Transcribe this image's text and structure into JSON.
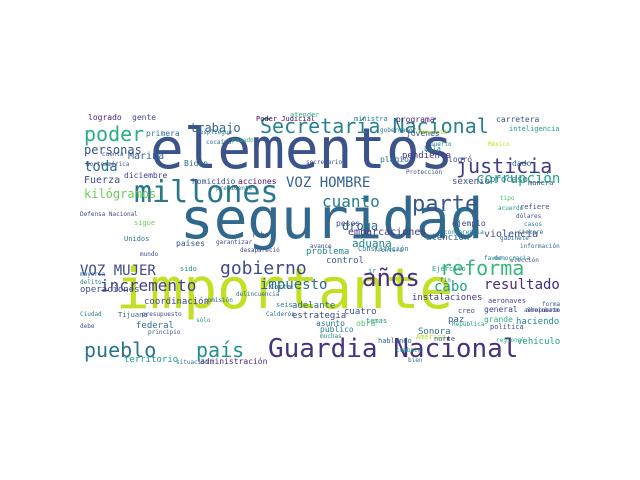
{
  "words": [
    {
      "t": "seguridad",
      "c": "#31688e"
    },
    {
      "t": "importante",
      "c": "#c2df23"
    },
    {
      "t": "elementos",
      "c": "#3b528b"
    },
    {
      "t": "Guardia Nacional",
      "c": "#46327e"
    },
    {
      "t": "millones",
      "c": "#2a788e"
    },
    {
      "t": "Secretaría Nacional",
      "c": "#26828e"
    },
    {
      "t": "años",
      "c": "#472d7b"
    },
    {
      "t": "pueblo",
      "c": "#2c728e"
    },
    {
      "t": "país",
      "c": "#21918c"
    },
    {
      "t": "gobierno",
      "c": "#3e4989"
    },
    {
      "t": "reforma",
      "c": "#35b779"
    },
    {
      "t": "justicia",
      "c": "#443a83"
    },
    {
      "t": "poder",
      "c": "#2ab07f"
    },
    {
      "t": "VOZ HOMBRE",
      "c": "#33638d"
    },
    {
      "t": "VOZ MUJER",
      "c": "#3e4a89"
    },
    {
      "t": "incremento",
      "c": "#414487"
    },
    {
      "t": "corrupción",
      "c": "#20a486"
    },
    {
      "t": "parte",
      "c": "#38588c"
    },
    {
      "t": "cuanto",
      "c": "#287d8e"
    },
    {
      "t": "trabajo",
      "c": "#32658e"
    },
    {
      "t": "personas",
      "c": "#3a538b"
    },
    {
      "t": "toda",
      "c": "#2d708e"
    },
    {
      "t": "resultado",
      "c": "#472a7a"
    },
    {
      "t": "cabo",
      "c": "#1fa188"
    },
    {
      "t": "impuesto",
      "c": "#2f6b8e"
    },
    {
      "t": "droga",
      "c": "#30698e"
    },
    {
      "t": "aduana",
      "c": "#24868e"
    },
    {
      "t": "kilógramos",
      "c": "#6ccd5a"
    },
    {
      "t": "Fuerza",
      "c": "#3f4788"
    },
    {
      "t": "Marina",
      "c": "#355e8d"
    },
    {
      "t": "violencia",
      "c": "#3b518b"
    },
    {
      "t": "embarcaciones",
      "c": "#453781"
    },
    {
      "t": "pendiente",
      "c": "#46337e"
    },
    {
      "t": "sexenio",
      "c": "#3c4f8a"
    },
    {
      "t": "proceso",
      "c": "#2b758e"
    },
    {
      "t": "atención",
      "c": "#34618d"
    },
    {
      "t": "homicidio",
      "c": "#3d4d8a"
    },
    {
      "t": "acciones",
      "c": "#471063"
    },
    {
      "t": "diciembre",
      "c": "#433e85"
    },
    {
      "t": "Biden",
      "c": "#2e6d8e"
    },
    {
      "t": "Poder Judicial",
      "c": "#450559"
    },
    {
      "t": "logrado",
      "c": "#481f70"
    },
    {
      "t": "gente",
      "c": "#3d4e8a"
    },
    {
      "t": "primera",
      "c": "#2f6c8e"
    },
    {
      "t": "programa",
      "c": "#482173"
    },
    {
      "t": "carretera",
      "c": "#3c508b"
    },
    {
      "t": "ministra",
      "c": "#25848e"
    },
    {
      "t": "atender",
      "c": "#29af7f"
    },
    {
      "t": "inteligencia",
      "c": "#1f9e89"
    },
    {
      "t": "operaciones",
      "c": "#3e4c8a"
    },
    {
      "t": "coordinación",
      "c": "#404688"
    },
    {
      "t": "federal",
      "c": "#2e6f8e"
    },
    {
      "t": "territorio",
      "c": "#1e9b8a"
    },
    {
      "t": "administración",
      "c": "#482878"
    },
    {
      "t": "estrategia",
      "c": "#3f4889"
    },
    {
      "t": "adelante",
      "c": "#32648e"
    },
    {
      "t": "problema",
      "c": "#228c8d"
    },
    {
      "t": "control",
      "c": "#355f8d"
    },
    {
      "t": "cuatro",
      "c": "#3b528b"
    },
    {
      "t": "obra",
      "c": "#52c569"
    },
    {
      "t": "Sonora",
      "c": "#306a8e"
    },
    {
      "t": "paz",
      "c": "#365c8d"
    },
    {
      "t": "general",
      "c": "#3f4788"
    },
    {
      "t": "grande",
      "c": "#29af7f"
    },
    {
      "t": "haciendo",
      "c": "#24878e"
    },
    {
      "t": "vehículo",
      "c": "#20a386"
    },
    {
      "t": "política",
      "c": "#3d4e8a"
    },
    {
      "t": "instalaciones",
      "c": "#453882"
    },
    {
      "t": "América",
      "c": "#b5de2b"
    },
    {
      "t": "jóvenes",
      "c": "#3e4989"
    },
    {
      "t": "Lula",
      "c": "#23898e"
    },
    {
      "t": "plagio",
      "c": "#2c718e"
    },
    {
      "t": "logró",
      "c": "#3f4788"
    },
    {
      "t": "dado",
      "c": "#34618d"
    },
    {
      "t": "Ejército",
      "c": "#1fa187"
    },
    {
      "t": "Constitución",
      "c": "#287c8e"
    },
    {
      "t": "pesos",
      "c": "#414487"
    },
    {
      "t": "ir",
      "c": "#25838e"
    },
    {
      "t": "robo",
      "c": "#3a538b"
    },
    {
      "t": "sido",
      "c": "#21918c"
    },
    {
      "t": "países",
      "c": "#39568c"
    },
    {
      "t": "sigue",
      "c": "#6ece58"
    },
    {
      "t": "Unidos",
      "c": "#2a778e"
    },
    {
      "t": "mundo",
      "c": "#3e4a89"
    },
    {
      "t": "delito",
      "c": "#297b8e"
    },
    {
      "t": "mayoría",
      "c": "#31688e"
    },
    {
      "t": "Corte",
      "c": "#2d718e"
    },
    {
      "t": "seis",
      "c": "#27808e"
    },
    {
      "t": "público",
      "c": "#26828e"
    },
    {
      "t": "muchas",
      "c": "#238a8d"
    },
    {
      "t": "asunto",
      "c": "#2b748e"
    },
    {
      "t": "temas",
      "c": "#1f968b"
    },
    {
      "t": "hablando",
      "c": "#2f6b8e"
    },
    {
      "t": "norte",
      "c": "#365d8d"
    },
    {
      "t": "favor",
      "c": "#277e8e"
    },
    {
      "t": "creo",
      "c": "#3e4a89"
    },
    {
      "t": "manera",
      "c": "#3b528b"
    },
    {
      "t": "ejemplo",
      "c": "#3c4f8a"
    },
    {
      "t": "conferencia",
      "c": "#25858e"
    },
    {
      "t": "gabinete",
      "c": "#306a8e"
    },
    {
      "t": "refiere",
      "c": "#3b518b"
    },
    {
      "t": "México",
      "c": "#c8e020"
    },
    {
      "t": "puerto",
      "c": "#2a768e"
    },
    {
      "t": "fin",
      "c": "#2e6e8e"
    },
    {
      "t": "Sheinbaum",
      "c": "#3f4889"
    },
    {
      "t": "casos",
      "c": "#24878e"
    },
    {
      "t": "tipo",
      "c": "#4ac16d"
    },
    {
      "t": "Tijuana",
      "c": "#30698e"
    },
    {
      "t": "presupuesto",
      "c": "#3e4a89"
    },
    {
      "t": "principio",
      "c": "#39568c"
    },
    {
      "t": "Ciudad",
      "c": "#25848e"
    },
    {
      "t": "debe",
      "c": "#3b528b"
    },
    {
      "t": "sólo",
      "c": "#1f9f88"
    },
    {
      "t": "situación",
      "c": "#2a778e"
    },
    {
      "t": "comisión",
      "c": "#33638d"
    },
    {
      "t": "Defensa Nacional",
      "c": "#3e4989"
    },
    {
      "t": "delincuencia",
      "c": "#2e6e8e"
    },
    {
      "t": "Protección",
      "c": "#3a548c"
    },
    {
      "t": "acuerdo",
      "c": "#1f9a8a"
    },
    {
      "t": "aeronaves",
      "c": "#404688"
    },
    {
      "t": "regional",
      "c": "#35b779"
    },
    {
      "t": "aeropuerto",
      "c": "#3e4c8a"
    },
    {
      "t": "forma",
      "c": "#30698e"
    },
    {
      "t": "información",
      "c": "#2e6d8e"
    },
    {
      "t": "elección",
      "c": "#39568c"
    },
    {
      "t": "democracia",
      "c": "#25848e"
    },
    {
      "t": "gobernador",
      "c": "#2b758e"
    },
    {
      "t": "secretario",
      "c": "#3b528b"
    },
    {
      "t": "frontera",
      "c": "#2a788e"
    },
    {
      "t": "combate",
      "c": "#1f9a8a"
    },
    {
      "t": "avance",
      "c": "#3e4989"
    },
    {
      "t": "bien",
      "c": "#2c728e"
    },
    {
      "t": "siempre",
      "c": "#355f8d"
    },
    {
      "t": "dólares",
      "c": "#3a538b"
    },
    {
      "t": "tan",
      "c": "#238a8d"
    },
    {
      "t": "garantizar",
      "c": "#3e4a89"
    },
    {
      "t": "presidente",
      "c": "#2f6c8e"
    },
    {
      "t": "denuncia",
      "c": "#b5de2b"
    },
    {
      "t": "pasado",
      "c": "#35b779"
    },
    {
      "t": "cocaína",
      "c": "#2d718e"
    },
    {
      "t": "República",
      "c": "#1f9e89"
    },
    {
      "t": "Calderón",
      "c": "#31688e"
    },
    {
      "t": "desapareció",
      "c": "#3f4788"
    },
    {
      "t": "despliegue",
      "c": "#2a788e"
    },
    {
      "t": "cuenta",
      "c": "#3b528b"
    },
    {
      "t": "Norteamérica",
      "c": "#38588c"
    }
  ]
}
